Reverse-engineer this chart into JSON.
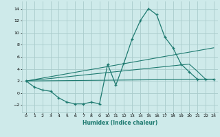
{
  "xlabel": "Humidex (Indice chaleur)",
  "bg_color": "#ceeaea",
  "grid_color": "#aacccc",
  "line_color": "#1e7a70",
  "xlim": [
    -0.5,
    23.5
  ],
  "ylim": [
    -3.2,
    15.2
  ],
  "xticks": [
    0,
    1,
    2,
    3,
    4,
    5,
    6,
    7,
    8,
    9,
    10,
    11,
    12,
    13,
    14,
    15,
    16,
    17,
    18,
    19,
    20,
    21,
    22,
    23
  ],
  "yticks": [
    -2,
    0,
    2,
    4,
    6,
    8,
    10,
    12,
    14
  ],
  "main_x": [
    0,
    1,
    2,
    3,
    4,
    5,
    6,
    7,
    8,
    9,
    10,
    11,
    12,
    13,
    14,
    15,
    16,
    17,
    18,
    19,
    20,
    21,
    22,
    23
  ],
  "main_y": [
    2.0,
    1.0,
    0.5,
    0.3,
    -0.8,
    -1.5,
    -1.8,
    -1.8,
    -1.5,
    -1.8,
    4.8,
    1.3,
    5.0,
    9.0,
    12.0,
    14.0,
    13.0,
    9.3,
    7.5,
    4.8,
    3.5,
    2.3,
    2.3,
    2.3
  ],
  "line1_x": [
    0,
    23
  ],
  "line1_y": [
    2.0,
    2.3
  ],
  "line2_x": [
    0,
    23
  ],
  "line2_y": [
    2.0,
    7.5
  ],
  "line3_x": [
    0,
    20,
    21,
    22,
    23
  ],
  "line3_y": [
    2.0,
    4.8,
    3.6,
    2.3,
    2.3
  ]
}
